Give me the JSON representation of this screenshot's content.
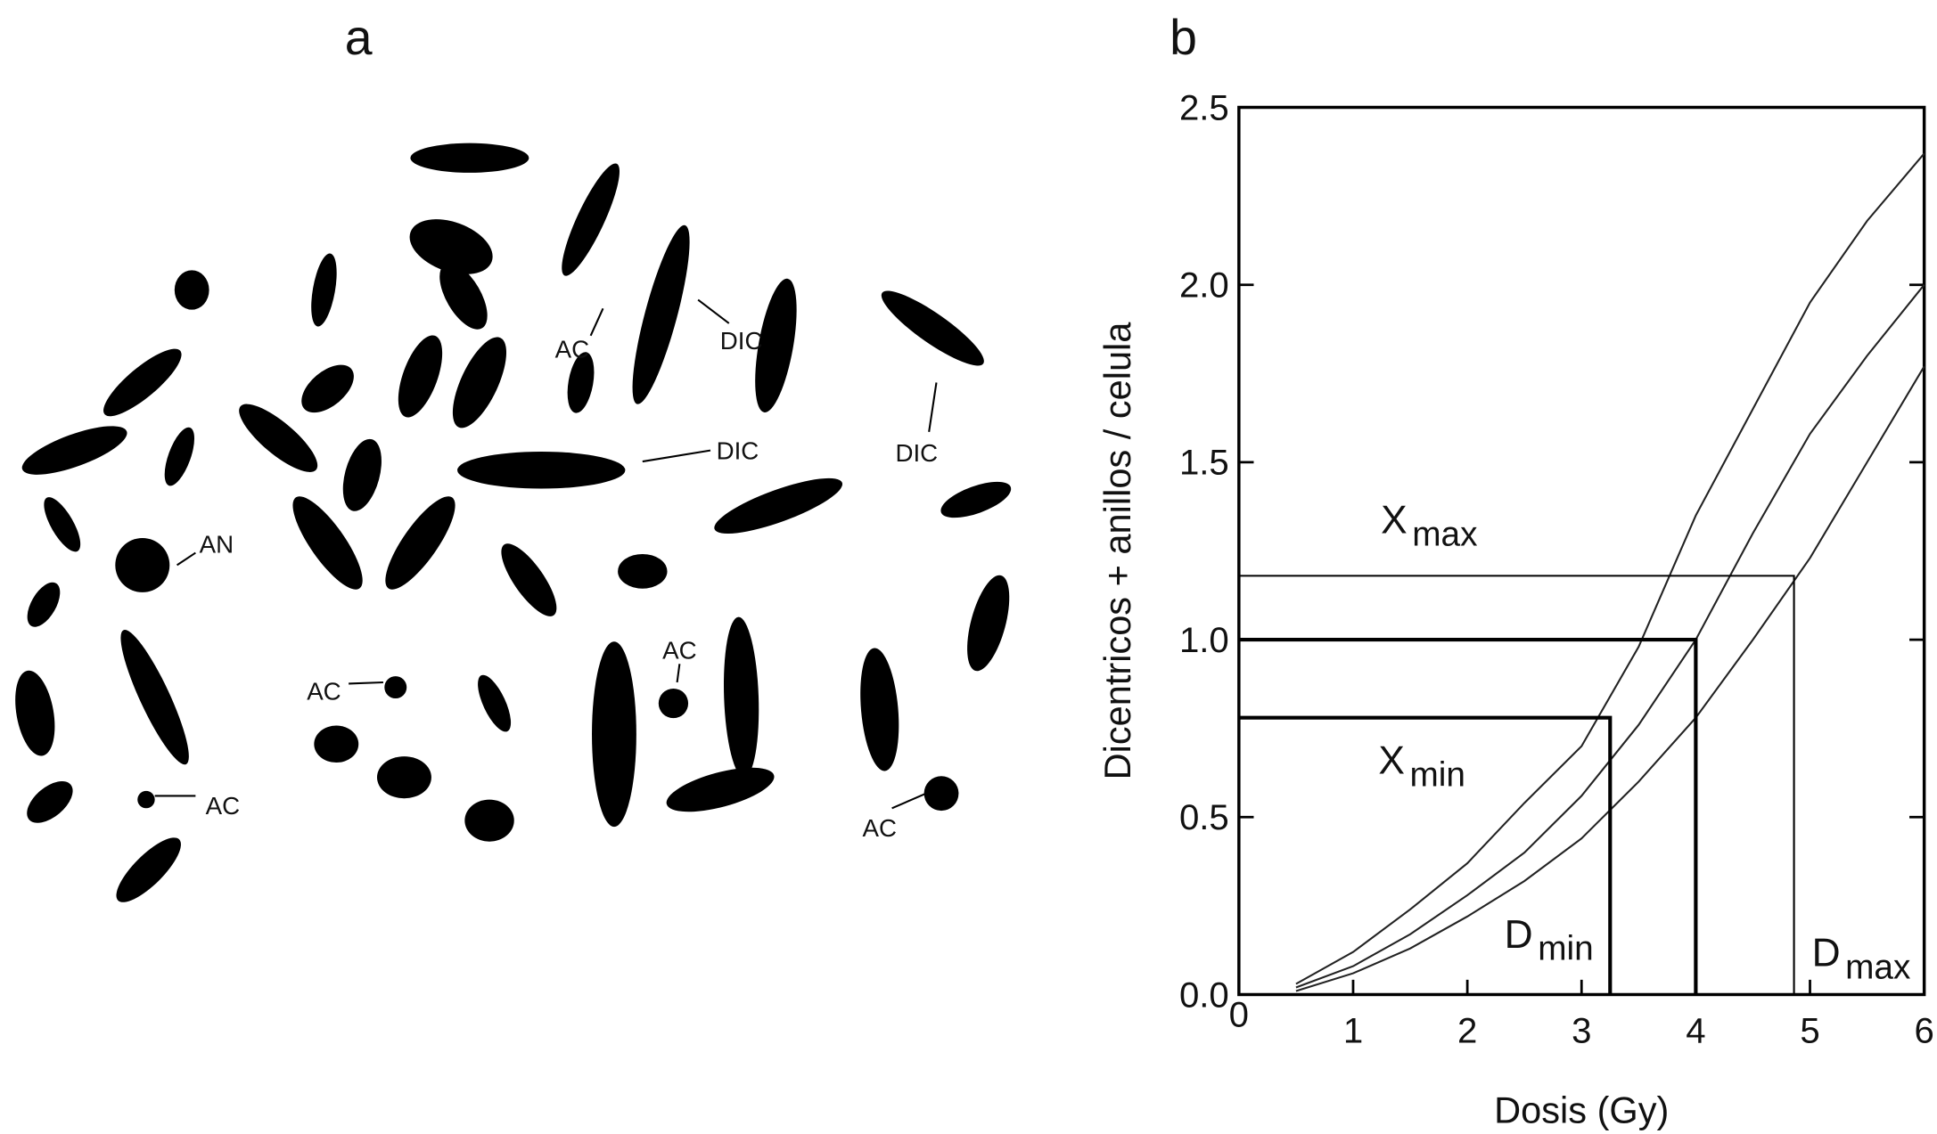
{
  "panel_a": {
    "label": "a",
    "labels": [
      "AC",
      "DIC",
      "DIC",
      "DIC",
      "AN",
      "AC",
      "AC",
      "AC",
      "AC"
    ]
  },
  "chart_data": {
    "type": "line",
    "label": "b",
    "x_label": "Dosis (Gy)",
    "y_label": "Dicentricos + anillos / celula",
    "x": [
      0.5,
      1,
      1.5,
      2,
      2.5,
      3,
      3.5,
      4,
      4.5,
      5,
      5.5,
      6
    ],
    "series": [
      {
        "color": "#222222",
        "values": [
          0.03,
          0.12,
          0.24,
          0.37,
          0.54,
          0.7,
          0.98,
          1.35,
          1.65,
          1.95,
          2.18,
          2.37
        ]
      },
      {
        "color": "#222222",
        "values": [
          0.02,
          0.08,
          0.17,
          0.28,
          0.4,
          0.56,
          0.76,
          1.0,
          1.3,
          1.58,
          1.8,
          2.0
        ]
      },
      {
        "color": "#222222",
        "values": [
          0.01,
          0.06,
          0.13,
          0.22,
          0.32,
          0.44,
          0.6,
          0.78,
          1.0,
          1.23,
          1.5,
          1.77
        ]
      }
    ],
    "reference_lines": [
      {
        "x": 4.86,
        "y": 1.18
      },
      {
        "x": 4,
        "y": 1.0
      },
      {
        "x": 3.25,
        "y": 0.78
      }
    ],
    "annotations": [
      {
        "text": "X",
        "sub": "max"
      },
      {
        "text": "X",
        "sub": "min"
      },
      {
        "text": "D",
        "sub": "min"
      },
      {
        "text": "D",
        "sub": "max"
      }
    ],
    "xlim": [
      0,
      6
    ],
    "ylim": [
      0,
      2.5
    ],
    "xticks": [
      0,
      1,
      2,
      3,
      4,
      5,
      6
    ],
    "yticks": [
      {
        "value": 0,
        "label": "0.0"
      },
      0.5,
      {
        "value": 1,
        "label": "1.0"
      },
      1.5,
      {
        "value": 2,
        "label": "2.0"
      },
      2.5
    ]
  }
}
